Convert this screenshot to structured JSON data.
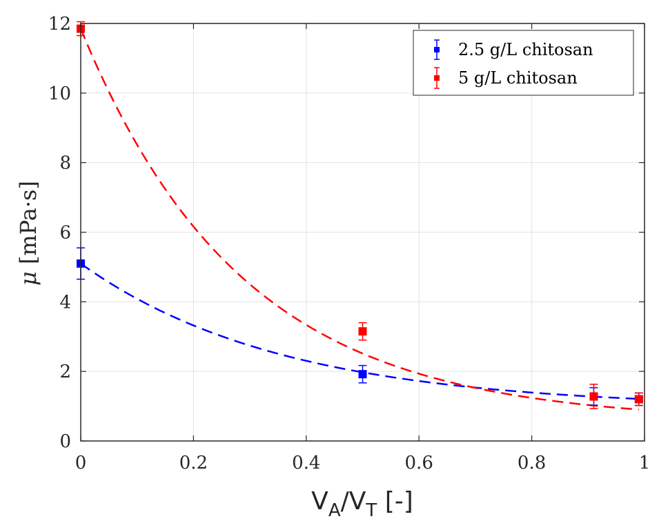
{
  "chart_data": {
    "type": "scatter",
    "title": "",
    "xlabel": "V_A/V_T [-]",
    "xlabel_parts": {
      "v1": "V",
      "sub1": "A",
      "slash": "/",
      "v2": "V",
      "sub2": "T",
      "unit": " [-]"
    },
    "ylabel": "μ [mPa·s]",
    "ylabel_parts": {
      "symbol": "μ",
      "unit": " [mPa·s]"
    },
    "xlim": [
      0,
      1
    ],
    "ylim": [
      0,
      12
    ],
    "xticks": [
      0,
      0.2,
      0.4,
      0.6,
      0.8,
      1
    ],
    "xtick_labels": [
      "0",
      "0.2",
      "0.4",
      "0.6",
      "0.8",
      "1"
    ],
    "yticks": [
      0,
      2,
      4,
      6,
      8,
      10,
      12
    ],
    "ytick_labels": [
      "0",
      "2",
      "4",
      "6",
      "8",
      "10",
      "12"
    ],
    "grid": true,
    "legend_position": "top-right",
    "series": [
      {
        "name": "2.5 g/L chitosan",
        "color": "#0000ff",
        "marker": "square",
        "x": [
          0,
          0.5,
          0.91,
          0.99
        ],
        "y": [
          5.1,
          1.92,
          1.28,
          1.2
        ],
        "err": [
          0.45,
          0.25,
          0.25,
          0.18
        ],
        "fit": {
          "style": "dashed",
          "curve": "exponential",
          "asymptote": 0.95,
          "amplitude": 4.15,
          "rate": 2.8
        }
      },
      {
        "name": "5 g/L chitosan",
        "color": "#ff0000",
        "marker": "square",
        "x": [
          0,
          0.5,
          0.91,
          0.99
        ],
        "y": [
          11.85,
          3.15,
          1.28,
          1.2
        ],
        "err": [
          0.2,
          0.25,
          0.35,
          0.18
        ],
        "fit": {
          "style": "dashed",
          "curve": "exponential",
          "asymptote": 0.55,
          "amplitude": 11.3,
          "rate": 3.5
        }
      }
    ]
  }
}
